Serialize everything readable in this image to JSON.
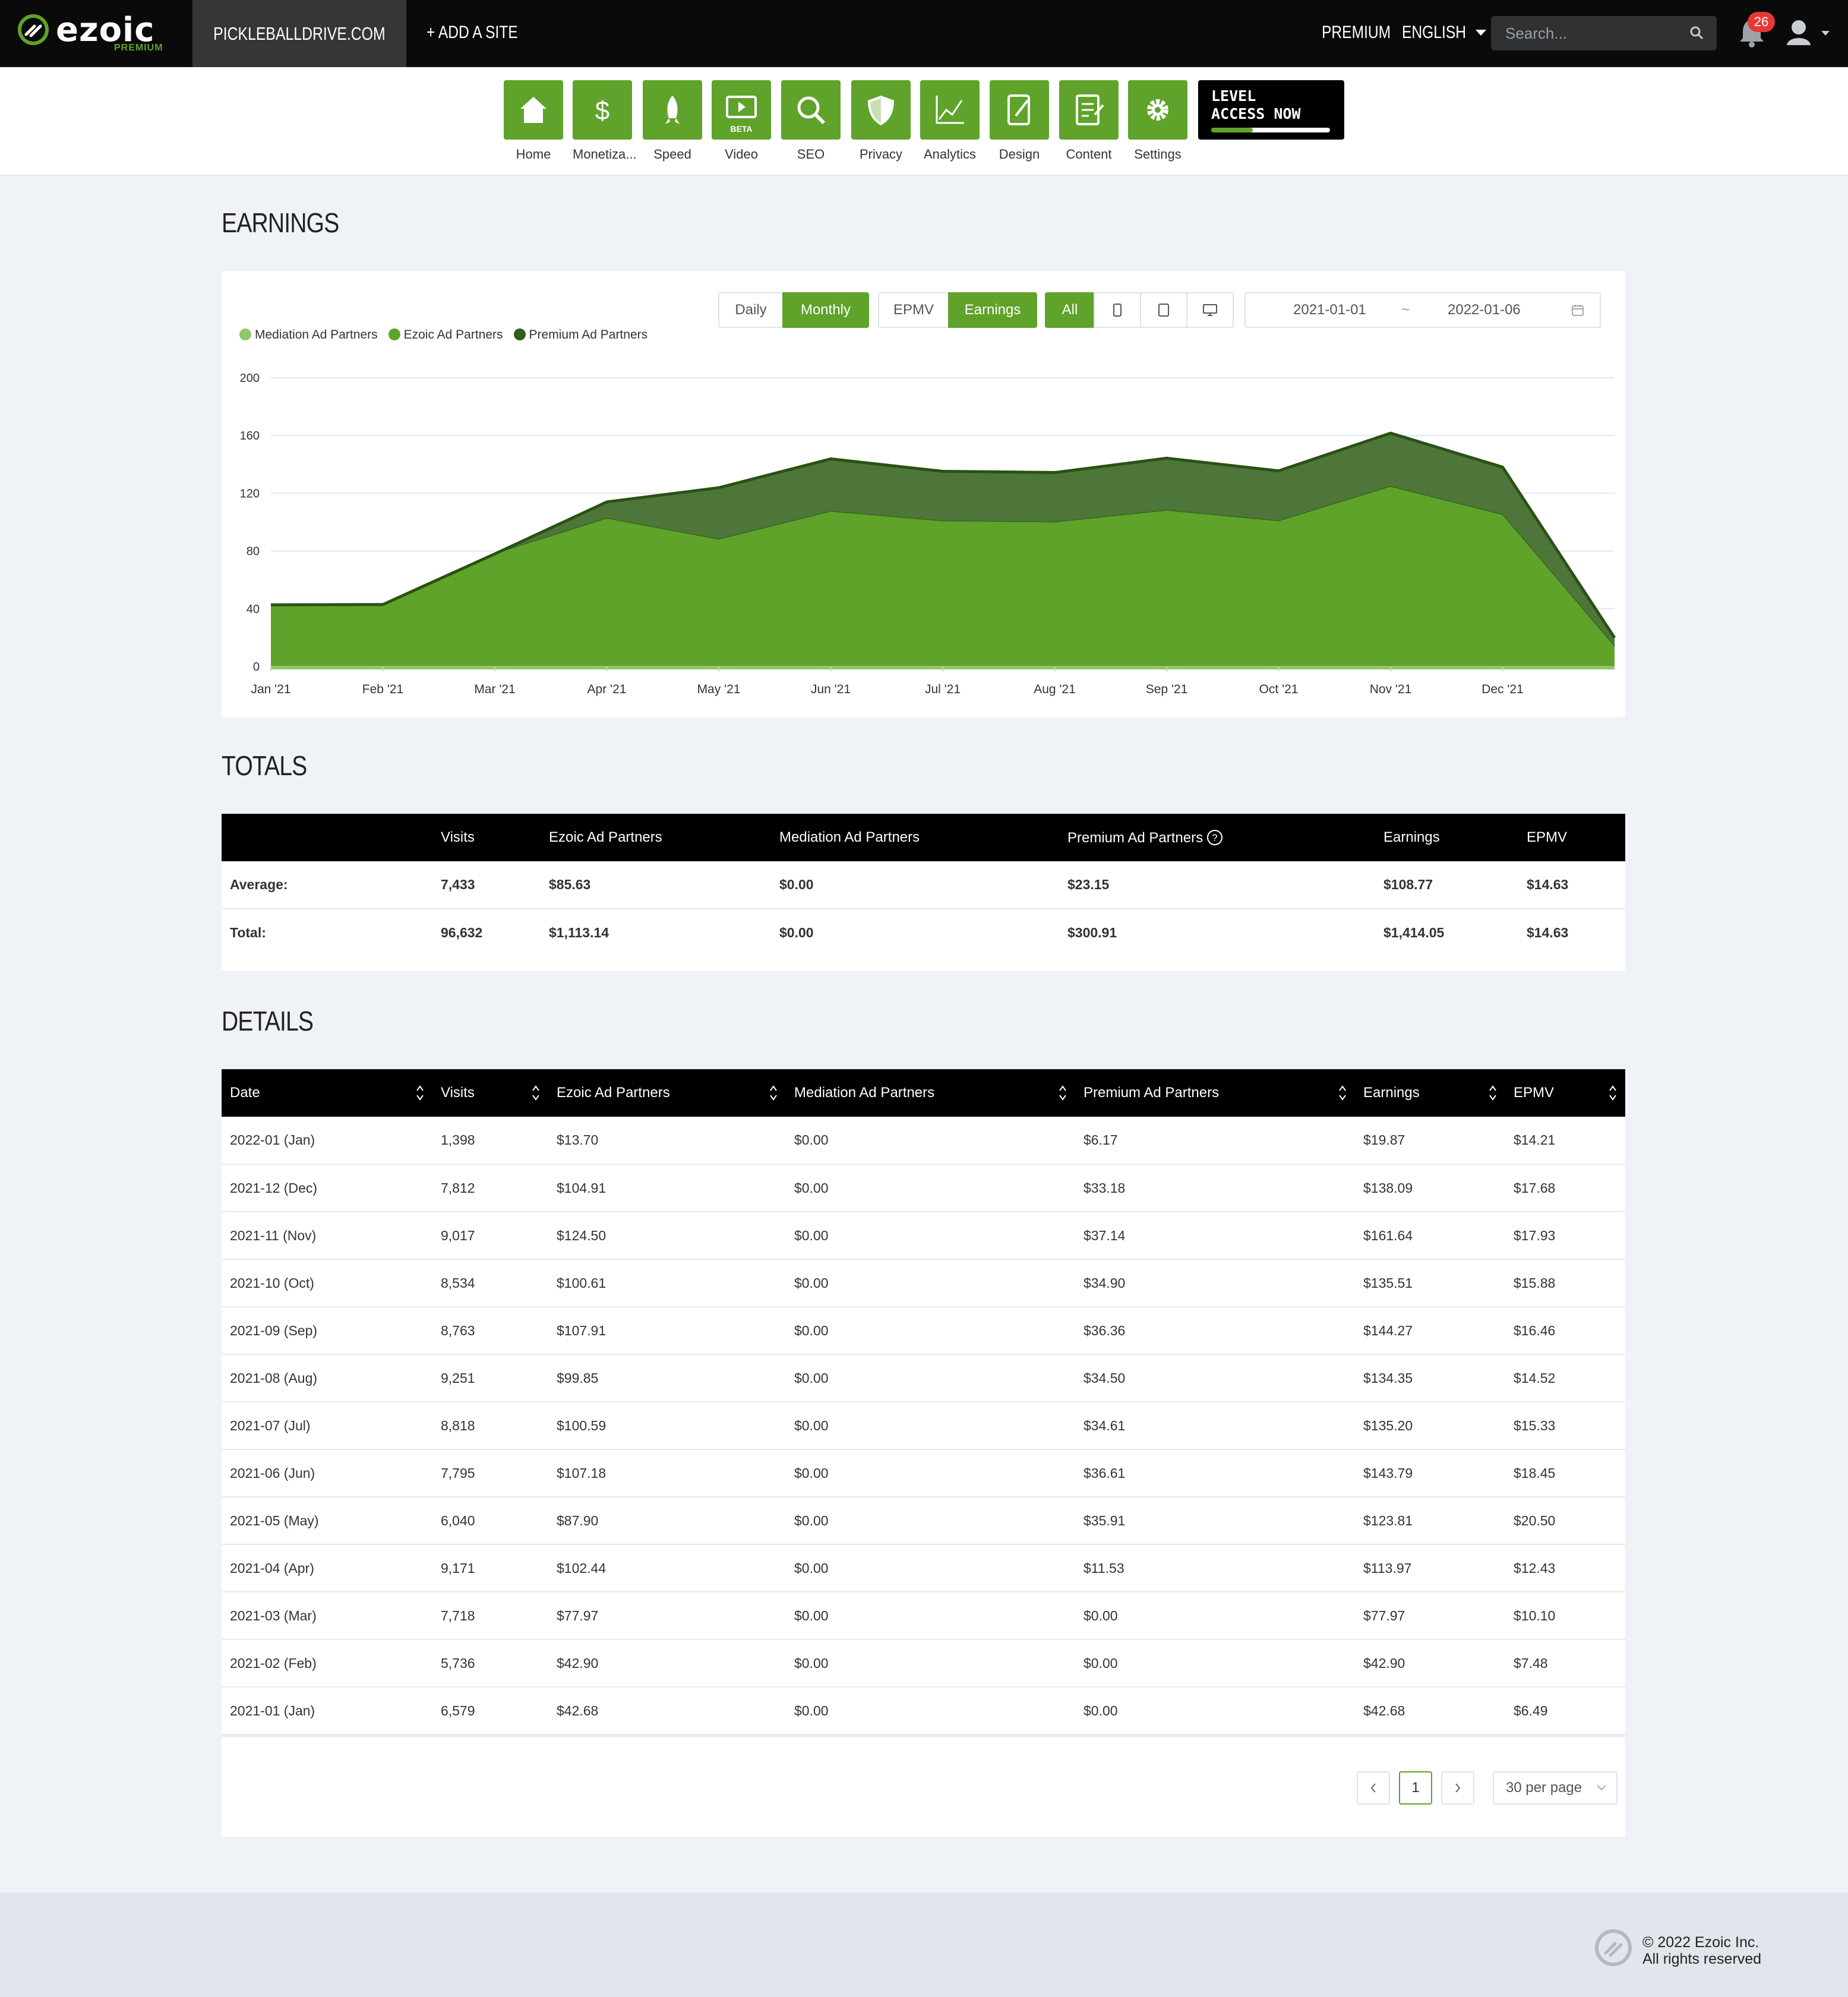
{
  "brand": {
    "name": "ezoic",
    "tier": "PREMIUM"
  },
  "topbar": {
    "site": "PICKLEBALLDRIVE.COM",
    "add_site": "+ ADD A SITE",
    "premium": "PREMIUM",
    "language": "ENGLISH",
    "search_placeholder": "Search...",
    "notifications": "26"
  },
  "tools": [
    {
      "label": "Home",
      "icon": "home-icon"
    },
    {
      "label": "Monetiza...",
      "icon": "dollar-icon"
    },
    {
      "label": "Speed",
      "icon": "rocket-icon"
    },
    {
      "label": "Video",
      "icon": "video-icon",
      "badge": "BETA"
    },
    {
      "label": "SEO",
      "icon": "magnifier-icon"
    },
    {
      "label": "Privacy",
      "icon": "shield-icon"
    },
    {
      "label": "Analytics",
      "icon": "line-chart-icon"
    },
    {
      "label": "Design",
      "icon": "design-icon"
    },
    {
      "label": "Content",
      "icon": "document-icon"
    },
    {
      "label": "Settings",
      "icon": "gear-icon"
    }
  ],
  "level_banner": {
    "line1": "LEVEL",
    "line2": "ACCESS NOW"
  },
  "earnings": {
    "title": "EARNINGS",
    "controls": {
      "daily": "Daily",
      "monthly": "Monthly",
      "epmv": "EPMV",
      "earnings": "Earnings",
      "all": "All",
      "start": "2021-01-01",
      "sep": "~",
      "end": "2022-01-06"
    },
    "active": [
      "Monthly",
      "Earnings",
      "All"
    ]
  },
  "chart_data": {
    "type": "area",
    "stacked": true,
    "title": "",
    "xlabel": "",
    "ylabel": "",
    "categories": [
      "Jan '21",
      "Feb '21",
      "Mar '21",
      "Apr '21",
      "May '21",
      "Jun '21",
      "Jul '21",
      "Aug '21",
      "Sep '21",
      "Oct '21",
      "Nov '21",
      "Dec '21",
      "Jan '22"
    ],
    "x_tick_labels": [
      "Jan '21",
      "Feb '21",
      "Mar '21",
      "Apr '21",
      "May '21",
      "Jun '21",
      "Jul '21",
      "Aug '21",
      "Sep '21",
      "Oct '21",
      "Nov '21",
      "Dec '21"
    ],
    "yticks": [
      0,
      40,
      80,
      120,
      160,
      200
    ],
    "ylim": [
      0,
      200
    ],
    "grid": true,
    "legend_position": "top-left",
    "series": [
      {
        "name": "Mediation Ad Partners",
        "color": "#8fc76b",
        "values": [
          0,
          0,
          0,
          0,
          0,
          0,
          0,
          0,
          0,
          0,
          0,
          0,
          0
        ]
      },
      {
        "name": "Ezoic Ad Partners",
        "color": "#5fa32a",
        "values": [
          42.68,
          42.9,
          77.97,
          102.44,
          87.9,
          107.18,
          100.59,
          99.85,
          107.91,
          100.61,
          124.5,
          104.91,
          13.7
        ]
      },
      {
        "name": "Premium Ad Partners",
        "color": "#2f5e17",
        "values": [
          0,
          0,
          0,
          11.53,
          35.91,
          36.61,
          34.61,
          34.5,
          36.36,
          34.9,
          37.14,
          33.18,
          6.17
        ]
      }
    ]
  },
  "totals": {
    "title": "TOTALS",
    "headers": [
      "",
      "Visits",
      "Ezoic Ad Partners",
      "Mediation Ad Partners",
      "Premium Ad Partners",
      "Earnings",
      "EPMV"
    ],
    "rows": [
      [
        "Average:",
        "7,433",
        "$85.63",
        "$0.00",
        "$23.15",
        "$108.77",
        "$14.63"
      ],
      [
        "Total:",
        "96,632",
        "$1,113.14",
        "$0.00",
        "$300.91",
        "$1,414.05",
        "$14.63"
      ]
    ]
  },
  "details": {
    "title": "DETAILS",
    "headers": [
      "Date",
      "Visits",
      "Ezoic Ad Partners",
      "Mediation Ad Partners",
      "Premium Ad Partners",
      "Earnings",
      "EPMV"
    ],
    "rows": [
      [
        "2022-01 (Jan)",
        "1,398",
        "$13.70",
        "$0.00",
        "$6.17",
        "$19.87",
        "$14.21"
      ],
      [
        "2021-12 (Dec)",
        "7,812",
        "$104.91",
        "$0.00",
        "$33.18",
        "$138.09",
        "$17.68"
      ],
      [
        "2021-11 (Nov)",
        "9,017",
        "$124.50",
        "$0.00",
        "$37.14",
        "$161.64",
        "$17.93"
      ],
      [
        "2021-10 (Oct)",
        "8,534",
        "$100.61",
        "$0.00",
        "$34.90",
        "$135.51",
        "$15.88"
      ],
      [
        "2021-09 (Sep)",
        "8,763",
        "$107.91",
        "$0.00",
        "$36.36",
        "$144.27",
        "$16.46"
      ],
      [
        "2021-08 (Aug)",
        "9,251",
        "$99.85",
        "$0.00",
        "$34.50",
        "$134.35",
        "$14.52"
      ],
      [
        "2021-07 (Jul)",
        "8,818",
        "$100.59",
        "$0.00",
        "$34.61",
        "$135.20",
        "$15.33"
      ],
      [
        "2021-06 (Jun)",
        "7,795",
        "$107.18",
        "$0.00",
        "$36.61",
        "$143.79",
        "$18.45"
      ],
      [
        "2021-05 (May)",
        "6,040",
        "$87.90",
        "$0.00",
        "$35.91",
        "$123.81",
        "$20.50"
      ],
      [
        "2021-04 (Apr)",
        "9,171",
        "$102.44",
        "$0.00",
        "$11.53",
        "$113.97",
        "$12.43"
      ],
      [
        "2021-03 (Mar)",
        "7,718",
        "$77.97",
        "$0.00",
        "$0.00",
        "$77.97",
        "$10.10"
      ],
      [
        "2021-02 (Feb)",
        "5,736",
        "$42.90",
        "$0.00",
        "$0.00",
        "$42.90",
        "$7.48"
      ],
      [
        "2021-01 (Jan)",
        "6,579",
        "$42.68",
        "$0.00",
        "$0.00",
        "$42.68",
        "$6.49"
      ]
    ]
  },
  "pagination": {
    "page": "1",
    "per_page": "30 per page"
  },
  "footer": {
    "line1": "© 2022 Ezoic Inc.",
    "line2": "All rights reserved"
  },
  "colors": {
    "accent": "#5fa32a",
    "dark_green": "#2f5e17",
    "topbar": "#0a0a0a",
    "badge": "#e53935"
  }
}
